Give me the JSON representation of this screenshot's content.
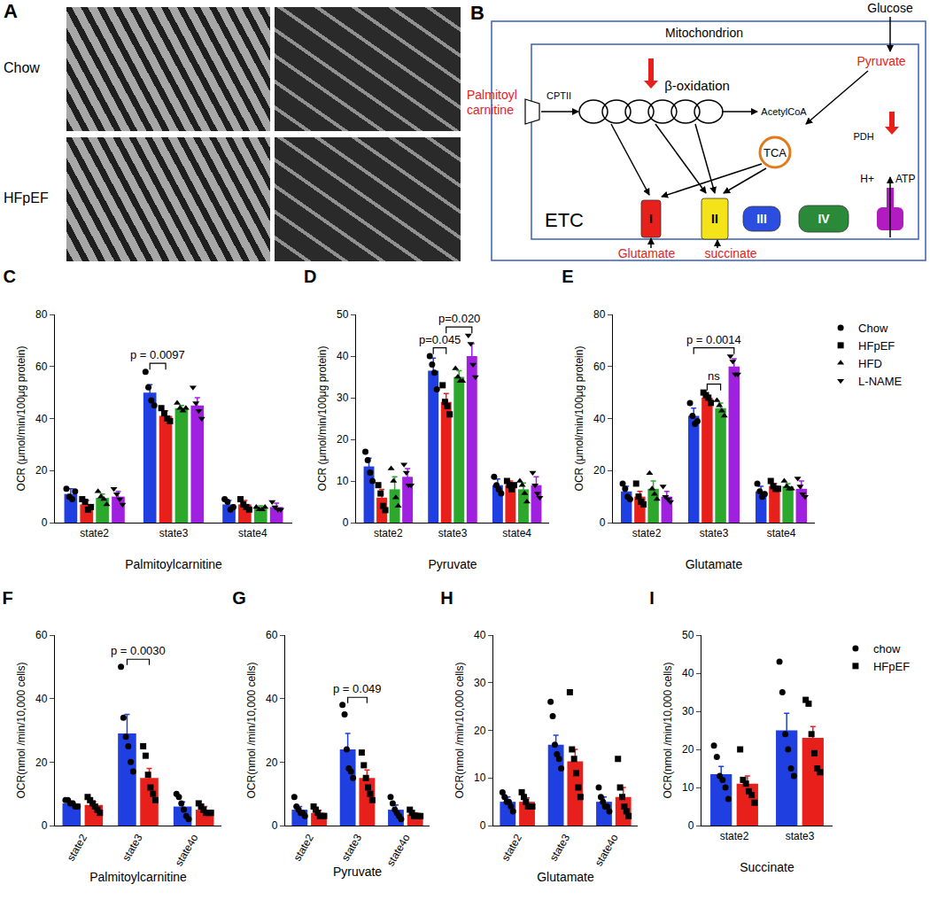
{
  "panels": {
    "A": {
      "title": "A",
      "rows": [
        "Chow",
        "HFpEF"
      ]
    },
    "B": {
      "title": "B",
      "container": "Mitochondrion",
      "glucose": "Glucose",
      "pyruvate": {
        "text": "Pyruvate",
        "color": "#e8201c"
      },
      "palmitoylcarnitine": {
        "lines": [
          "Palmitoyl",
          "carnitine"
        ],
        "color": "#e8201c"
      },
      "cpt": "CPTII",
      "beta_oxidation": "β-oxidation",
      "acetylcoa": "AcetylCoA",
      "tca": "TCA",
      "pdh": "PDH",
      "etc": "ETC",
      "complexes": [
        {
          "text": "I",
          "color": "#e8201c"
        },
        {
          "text": "II",
          "color": "#f5e31a"
        },
        {
          "text": "III",
          "color": "#2b4de0"
        },
        {
          "text": "IV",
          "color": "#2a8a3a"
        }
      ],
      "atp_synthase_color": "#b01cc0",
      "proton": "H+",
      "atp": "ATP",
      "glutamate": {
        "text": "Glutamate",
        "color": "#e8201c"
      },
      "succinate": {
        "text": "succinate",
        "color": "#e8201c"
      }
    }
  },
  "chart_data": [
    {
      "type": "bar",
      "title": "C",
      "x_label": "Palmitoylcarnitine",
      "y_label": "OCR (μmol/min/100μg protein)",
      "categories": [
        "state2",
        "state3",
        "state4"
      ],
      "ylim": [
        0,
        80
      ],
      "yticks": [
        0,
        20,
        40,
        60,
        80
      ],
      "grid": false,
      "series": [
        {
          "name": "Chow",
          "color": "#1f3fe0",
          "marker": "circle",
          "values": [
            11,
            50,
            7
          ],
          "errors": [
            2,
            3,
            1.5
          ],
          "points": [
            [
              13,
              10,
              9,
              12
            ],
            [
              58,
              52,
              47,
              45
            ],
            [
              9,
              8,
              5,
              6
            ]
          ]
        },
        {
          "name": "HFpEF",
          "color": "#e8201c",
          "marker": "square",
          "values": [
            7,
            41,
            7
          ],
          "errors": [
            1.5,
            2,
            1.5
          ],
          "points": [
            [
              9,
              8,
              5,
              6
            ],
            [
              44,
              42,
              40,
              39
            ],
            [
              9,
              7,
              6,
              5
            ]
          ]
        },
        {
          "name": "HFD",
          "color": "#2ca82c",
          "marker": "triangle-up",
          "values": [
            9.5,
            44,
            5.5
          ],
          "errors": [
            1.5,
            1,
            1
          ],
          "points": [
            [
              12,
              10,
              9,
              7
            ],
            [
              46,
              44,
              43,
              44
            ],
            [
              6,
              5,
              5,
              6
            ]
          ]
        },
        {
          "name": "L-NAME",
          "color": "#a020e0",
          "marker": "triangle-down",
          "values": [
            10,
            45,
            6
          ],
          "errors": [
            2,
            3,
            1.5
          ],
          "points": [
            [
              13,
              11,
              9,
              7
            ],
            [
              52,
              46,
              43,
              40
            ],
            [
              8,
              6,
              5,
              5
            ]
          ]
        }
      ],
      "annotations": [
        {
          "text": "p = 0.0097",
          "category": "state3",
          "series": [
            "Chow",
            "HFpEF"
          ]
        }
      ]
    },
    {
      "type": "bar",
      "title": "D",
      "x_label": "Pyruvate",
      "y_label": "OCR (μmol/min/100μg protein)",
      "categories": [
        "state2",
        "state3",
        "state4"
      ],
      "ylim": [
        0,
        50
      ],
      "yticks": [
        0,
        10,
        20,
        30,
        40,
        50
      ],
      "grid": false,
      "series": [
        {
          "name": "Chow",
          "color": "#1f3fe0",
          "marker": "circle",
          "values": [
            13.5,
            36.5,
            9
          ],
          "errors": [
            2,
            3,
            1.5
          ],
          "points": [
            [
              17,
              15,
              12,
              10
            ],
            [
              40,
              38,
              36,
              32
            ],
            [
              11,
              9,
              8,
              7
            ]
          ]
        },
        {
          "name": "HFpEF",
          "color": "#e8201c",
          "marker": "square",
          "values": [
            6,
            29,
            9
          ],
          "errors": [
            2,
            2,
            1
          ],
          "points": [
            [
              9,
              7,
              4,
              3
            ],
            [
              33,
              29,
              28,
              26
            ],
            [
              10,
              9,
              8,
              9
            ]
          ]
        },
        {
          "name": "HFD",
          "color": "#2ca82c",
          "marker": "triangle-up",
          "values": [
            8,
            35,
            8
          ],
          "errors": [
            3,
            1.5,
            1.5
          ],
          "points": [
            [
              13,
              10,
              6,
              4
            ],
            [
              37,
              35,
              34,
              34
            ],
            [
              10,
              9,
              7,
              5
            ]
          ]
        },
        {
          "name": "L-NAME",
          "color": "#a020e0",
          "marker": "triangle-down",
          "values": [
            11,
            40,
            9
          ],
          "errors": [
            2,
            3,
            2
          ],
          "points": [
            [
              14,
              12,
              9,
              9
            ],
            [
              45,
              43,
              38,
              35
            ],
            [
              12,
              9,
              7,
              6
            ]
          ]
        }
      ],
      "annotations": [
        {
          "text": "p=0.045",
          "category": "state3",
          "series": [
            "Chow",
            "HFpEF"
          ]
        },
        {
          "text": "p=0.020",
          "category": "state3",
          "series": [
            "HFpEF",
            "L-NAME"
          ]
        }
      ]
    },
    {
      "type": "bar",
      "title": "E",
      "x_label": "Glutamate",
      "y_label": "OCR (μmol/min/100μg protein)",
      "categories": [
        "state2",
        "state3",
        "state4"
      ],
      "ylim": [
        0,
        80
      ],
      "yticks": [
        0,
        20,
        40,
        60,
        80
      ],
      "grid": false,
      "legend": "right",
      "series": [
        {
          "name": "Chow",
          "color": "#1f3fe0",
          "marker": "circle",
          "values": [
            12,
            41,
            12
          ],
          "errors": [
            2,
            3,
            2
          ],
          "points": [
            [
              15,
              13,
              10,
              9
            ],
            [
              46,
              41,
              38,
              39
            ],
            [
              15,
              12,
              10,
              11
            ]
          ]
        },
        {
          "name": "HFpEF",
          "color": "#e8201c",
          "marker": "square",
          "values": [
            10,
            48,
            14
          ],
          "errors": [
            2,
            1,
            1
          ],
          "points": [
            [
              15,
              10,
              8,
              7
            ],
            [
              50,
              49,
              48,
              46
            ],
            [
              16,
              14,
              13,
              13
            ]
          ]
        },
        {
          "name": "HFD",
          "color": "#2ca82c",
          "marker": "triangle-up",
          "values": [
            13,
            44,
            14
          ],
          "errors": [
            3,
            2,
            1
          ],
          "points": [
            [
              19,
              13,
              11,
              9
            ],
            [
              47,
              45,
              43,
              41
            ],
            [
              16,
              14,
              13,
              13
            ]
          ]
        },
        {
          "name": "L-NAME",
          "color": "#a020e0",
          "marker": "triangle-down",
          "values": [
            10,
            60,
            13
          ],
          "errors": [
            2,
            3,
            3
          ],
          "points": [
            [
              14,
              10,
              9,
              8
            ],
            [
              64,
              62,
              57,
              57
            ],
            [
              17,
              14,
              11,
              10
            ]
          ]
        }
      ],
      "annotations": [
        {
          "text": "ns",
          "category": "state3",
          "series": [
            "HFpEF",
            "HFD"
          ]
        },
        {
          "text": "p = 0.0014",
          "category": "state3",
          "series": [
            "Chow",
            "L-NAME"
          ]
        }
      ]
    },
    {
      "type": "bar",
      "title": "F",
      "x_label": "Palmitoylcarnitine",
      "y_label": "OCR(nmol /min/10,000 cells)",
      "categories": [
        "state2",
        "state3",
        "state4o"
      ],
      "ylim": [
        0,
        60
      ],
      "yticks": [
        0,
        20,
        40,
        60
      ],
      "grid": false,
      "series": [
        {
          "name": "chow",
          "color": "#1f3fe0",
          "marker": "circle",
          "values": [
            7,
            29,
            6
          ],
          "errors": [
            0.7,
            6,
            1.5
          ],
          "points": [
            [
              8,
              8,
              7,
              7,
              6,
              6
            ],
            [
              50,
              34,
              28,
              25,
              20,
              17
            ],
            [
              10,
              9,
              7,
              5,
              3,
              2
            ]
          ]
        },
        {
          "name": "HFpEF",
          "color": "#e8201c",
          "marker": "square",
          "values": [
            6.5,
            15,
            5
          ],
          "errors": [
            1,
            3,
            1
          ],
          "points": [
            [
              9,
              8,
              7,
              6,
              5,
              4
            ],
            [
              25,
              22,
              16,
              12,
              10,
              8
            ],
            [
              7,
              6,
              5,
              4,
              4,
              4
            ]
          ]
        }
      ],
      "annotations": [
        {
          "text": "p = 0.0030",
          "category": "state3",
          "series": [
            "chow",
            "HFpEF"
          ]
        }
      ]
    },
    {
      "type": "bar",
      "title": "G",
      "x_label": "Pyruvate",
      "y_label": "OCR(nmol /min/10,000 cells)",
      "categories": [
        "state2",
        "state3",
        "state4o"
      ],
      "ylim": [
        0,
        60
      ],
      "yticks": [
        0,
        20,
        40,
        60
      ],
      "grid": false,
      "series": [
        {
          "name": "chow",
          "color": "#1f3fe0",
          "marker": "circle",
          "values": [
            5,
            24,
            5
          ],
          "errors": [
            1,
            5,
            1.5
          ],
          "points": [
            [
              9,
              6,
              5,
              4,
              4,
              3
            ],
            [
              38,
              35,
              24,
              18,
              17,
              15
            ],
            [
              9,
              7,
              5,
              4,
              3,
              2
            ]
          ]
        },
        {
          "name": "HFpEF",
          "color": "#e8201c",
          "marker": "square",
          "values": [
            4,
            15,
            3.5
          ],
          "errors": [
            0.8,
            2.5,
            0.5
          ],
          "points": [
            [
              6,
              5,
              4,
              3,
              3,
              3
            ],
            [
              23,
              19,
              15,
              12,
              10,
              8
            ],
            [
              5,
              4,
              3,
              3,
              3,
              3
            ]
          ]
        }
      ],
      "annotations": [
        {
          "text": "p = 0.049",
          "category": "state3",
          "series": [
            "chow",
            "HFpEF"
          ]
        }
      ]
    },
    {
      "type": "bar",
      "title": "H",
      "x_label": "Glutamate",
      "y_label": "OCR(nmol /min/10,000 cells)",
      "categories": [
        "state2",
        "state3",
        "state4o"
      ],
      "ylim": [
        0,
        40
      ],
      "yticks": [
        0,
        10,
        20,
        30,
        40
      ],
      "grid": false,
      "series": [
        {
          "name": "chow",
          "color": "#1f3fe0",
          "marker": "circle",
          "values": [
            5,
            17,
            5
          ],
          "errors": [
            1,
            2,
            1
          ],
          "points": [
            [
              7,
              6,
              5,
              5,
              4,
              3
            ],
            [
              26,
              23,
              17,
              15,
              14,
              12
            ],
            [
              8,
              6,
              5,
              4,
              4,
              3
            ]
          ]
        },
        {
          "name": "HFpEF",
          "color": "#e8201c",
          "marker": "square",
          "values": [
            5,
            13.5,
            6
          ],
          "errors": [
            0.8,
            2.5,
            2
          ],
          "points": [
            [
              7,
              6,
              5,
              4,
              4,
              4
            ],
            [
              28,
              16,
              14,
              11,
              8,
              6
            ],
            [
              14,
              8,
              6,
              4,
              3,
              2
            ]
          ]
        }
      ]
    },
    {
      "type": "bar",
      "title": "I",
      "x_label": "Succinate",
      "y_label": "OCR(nmol /min/10,000 cells)",
      "categories": [
        "state2",
        "state3"
      ],
      "ylim": [
        0,
        50
      ],
      "yticks": [
        0,
        10,
        20,
        30,
        40,
        50
      ],
      "grid": false,
      "legend": "right",
      "series": [
        {
          "name": "chow",
          "color": "#1f3fe0",
          "marker": "circle",
          "values": [
            13.5,
            25
          ],
          "errors": [
            2,
            4.5
          ],
          "points": [
            [
              21,
              18,
              13,
              12,
              10,
              7
            ],
            [
              43,
              35,
              24,
              20,
              15,
              13
            ]
          ]
        },
        {
          "name": "HFpEF",
          "color": "#e8201c",
          "marker": "square",
          "values": [
            11,
            23
          ],
          "errors": [
            2,
            3
          ],
          "points": [
            [
              20,
              12,
              11,
              9,
              8,
              6
            ],
            [
              33,
              32,
              24,
              19,
              15,
              14
            ]
          ]
        }
      ]
    }
  ]
}
